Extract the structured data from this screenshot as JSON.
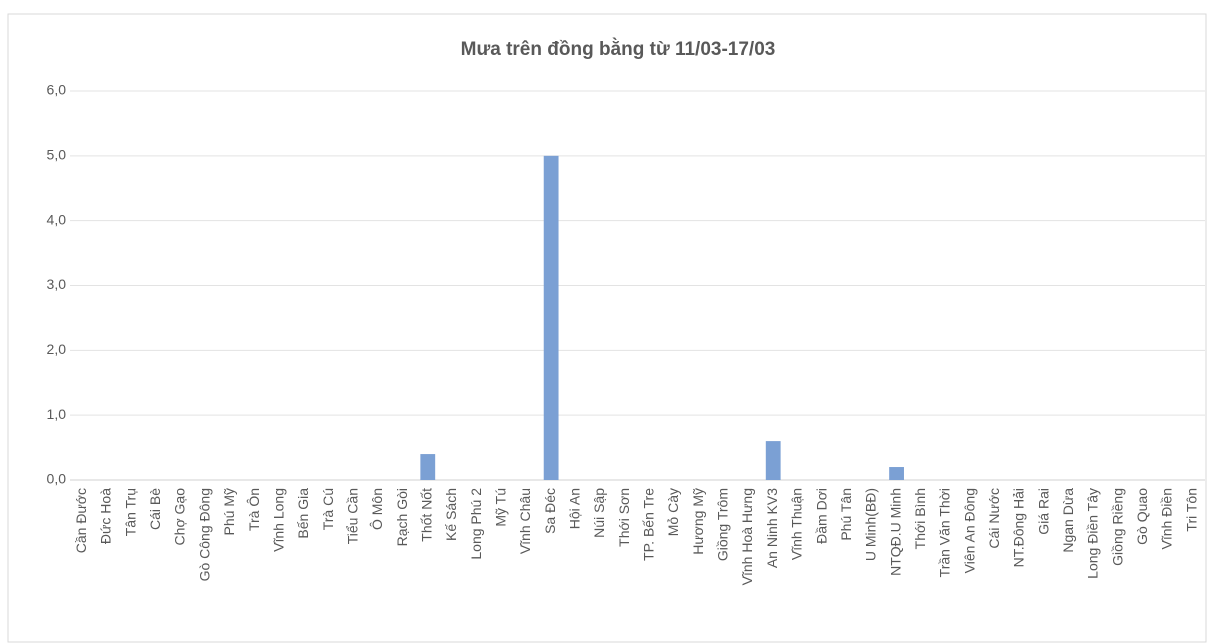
{
  "chart_data": {
    "type": "bar",
    "title": "Mưa trên đồng bằng từ 11/03-17/03",
    "categories": [
      "Cần Đước",
      "Đức Hoà",
      "Tân Trụ",
      "Cái Bè",
      "Chợ Gạo",
      "Gò Công Đông",
      "Phú Mỹ",
      "Trà Ôn",
      "Vĩnh Long",
      "Bến Gia",
      "Trà Cú",
      "Tiểu Cần",
      "Ô Môn",
      "Rạch Gòi",
      "Thốt Nốt",
      "Kế Sách",
      "Long Phú 2",
      "Mỹ Tú",
      "Vĩnh Châu",
      "Sa Đéc",
      "Hội An",
      "Núi Sập",
      "Thới Sơn",
      "TP. Bến Tre",
      "Mỏ Cày",
      "Hương Mỹ",
      "Giồng Trôm",
      "Vĩnh Hoà Hưng",
      "An Ninh KV3",
      "Vĩnh Thuận",
      "Đầm Dơi",
      "Phú Tân",
      "U Minh(BĐ)",
      "NTQĐ.U Minh",
      "Thới Bình",
      "Trần Văn Thời",
      "Viên An Đông",
      "Cái Nước",
      "NT.Đông Hải",
      "Giá Rai",
      "Ngan Dừa",
      "Long Điền Tây",
      "Giồng Riềng",
      "Gò Quao",
      "Vĩnh Điền",
      "Tri Tôn"
    ],
    "values": [
      0,
      0,
      0,
      0,
      0,
      0,
      0,
      0,
      0,
      0,
      0,
      0,
      0,
      0,
      0.4,
      0,
      0,
      0,
      0,
      5,
      0,
      0,
      0,
      0,
      0,
      0,
      0,
      0,
      0.6,
      0,
      0,
      0,
      0,
      0.2,
      0,
      0,
      0,
      0,
      0,
      0,
      0,
      0,
      0,
      0,
      0,
      0
    ],
    "color": "#7ba0d4",
    "ylim": [
      0,
      6
    ],
    "yticks": [
      {
        "value": 0,
        "label": "0,0"
      },
      {
        "value": 1,
        "label": "1,0"
      },
      {
        "value": 2,
        "label": "2,0"
      },
      {
        "value": 3,
        "label": "3,0"
      },
      {
        "value": 4,
        "label": "4,0"
      },
      {
        "value": 5,
        "label": "5,0"
      },
      {
        "value": 6,
        "label": "6,0"
      }
    ],
    "grid": true
  }
}
